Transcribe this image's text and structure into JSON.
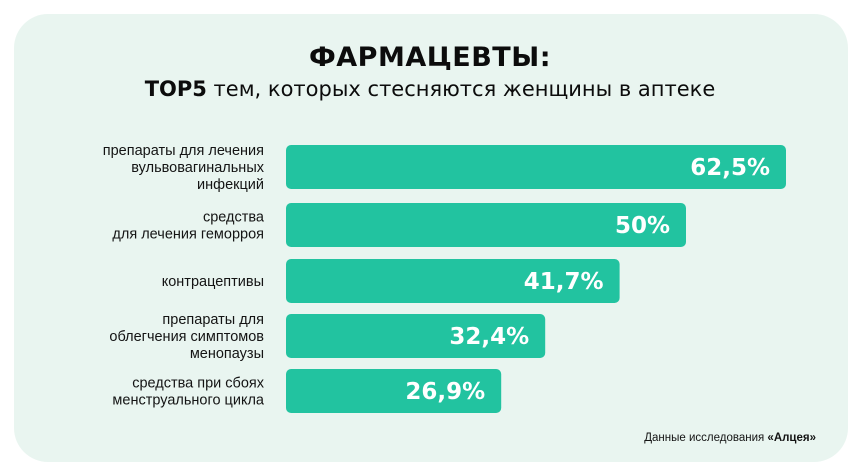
{
  "header": {
    "title": "ФАРМАЦЕВТЫ:",
    "subtitle_bold": "TOP5",
    "subtitle_rest": " тем, которых стесняются женщины в аптеке"
  },
  "footnote": {
    "prefix": "Данные исследования ",
    "source": "«Алцея»"
  },
  "colors": {
    "bar": "#22c3a0",
    "card": "#e9f5f0"
  },
  "chart_data": {
    "type": "bar",
    "orientation": "horizontal",
    "title": "ФАРМАЦЕВТЫ: TOP5 тем, которых стесняются женщины в аптеке",
    "categories": [
      [
        "препараты для лечения",
        "вульвовагинальных",
        "инфекций"
      ],
      [
        "средства",
        "для лечения геморроя"
      ],
      [
        "контрацептивы"
      ],
      [
        "препараты для",
        "облегчения симптомов",
        "менопаузы"
      ],
      [
        "средства при сбоях",
        "менструального цикла"
      ]
    ],
    "values": [
      62.5,
      50,
      41.7,
      32.4,
      26.9
    ],
    "value_labels": [
      "62,5%",
      "50%",
      "41,7%",
      "32,4%",
      "26,9%"
    ],
    "unit": "%"
  }
}
